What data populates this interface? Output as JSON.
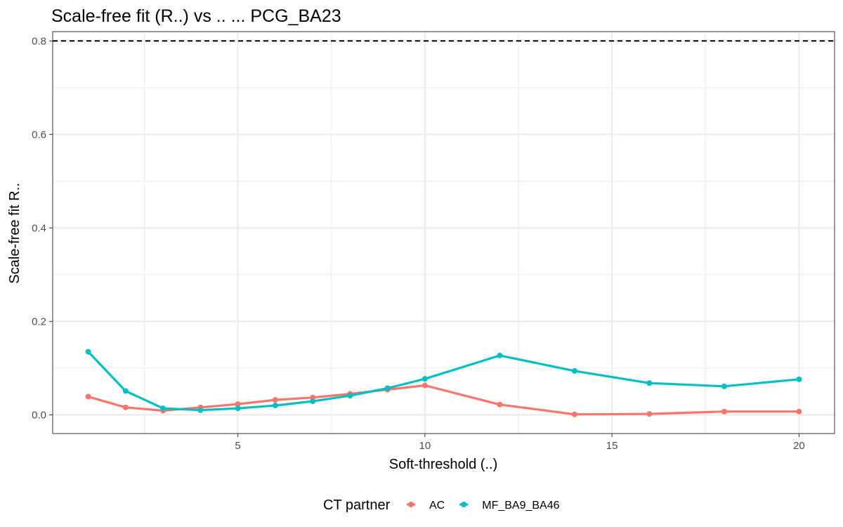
{
  "chart_data": {
    "type": "line",
    "title": "Scale-free fit (R..) vs .. ... PCG_BA23",
    "xlabel": "Soft-threshold (..)",
    "ylabel": "Scale-free fit R..",
    "xlim": [
      0.05,
      20.95
    ],
    "ylim": [
      -0.04,
      0.82
    ],
    "x_ticks": [
      5,
      10,
      15,
      20
    ],
    "y_ticks": [
      0.0,
      0.2,
      0.4,
      0.6,
      0.8
    ],
    "x_tick_labels": [
      "5",
      "10",
      "15",
      "20"
    ],
    "y_tick_labels": [
      "0.0",
      "0.2",
      "0.4",
      "0.6",
      "0.8"
    ],
    "grid": true,
    "reference_line": {
      "y": 0.8,
      "style": "dashed",
      "color": "#000000"
    },
    "legend": {
      "title": "CT partner",
      "position": "bottom"
    },
    "series": [
      {
        "name": "AC",
        "color": "#F8766D",
        "points": [
          {
            "x": 1,
            "y": 0.039
          },
          {
            "x": 2,
            "y": 0.016
          },
          {
            "x": 3,
            "y": 0.009
          },
          {
            "x": 4,
            "y": 0.016
          },
          {
            "x": 5,
            "y": 0.023
          },
          {
            "x": 6,
            "y": 0.032
          },
          {
            "x": 7,
            "y": 0.037
          },
          {
            "x": 8,
            "y": 0.045
          },
          {
            "x": 9,
            "y": 0.054
          },
          {
            "x": 10,
            "y": 0.063
          },
          {
            "x": 12,
            "y": 0.022
          },
          {
            "x": 14,
            "y": 0.001
          },
          {
            "x": 16,
            "y": 0.002
          },
          {
            "x": 18,
            "y": 0.007
          },
          {
            "x": 20,
            "y": 0.007
          }
        ]
      },
      {
        "name": "MF_BA9_BA46",
        "color": "#00BFC4",
        "points": [
          {
            "x": 1,
            "y": 0.135
          },
          {
            "x": 2,
            "y": 0.051
          },
          {
            "x": 3,
            "y": 0.014
          },
          {
            "x": 4,
            "y": 0.01
          },
          {
            "x": 5,
            "y": 0.014
          },
          {
            "x": 6,
            "y": 0.02
          },
          {
            "x": 7,
            "y": 0.029
          },
          {
            "x": 8,
            "y": 0.041
          },
          {
            "x": 9,
            "y": 0.057
          },
          {
            "x": 10,
            "y": 0.077
          },
          {
            "x": 12,
            "y": 0.127
          },
          {
            "x": 14,
            "y": 0.094
          },
          {
            "x": 16,
            "y": 0.068
          },
          {
            "x": 18,
            "y": 0.061
          },
          {
            "x": 20,
            "y": 0.076
          }
        ]
      }
    ]
  }
}
